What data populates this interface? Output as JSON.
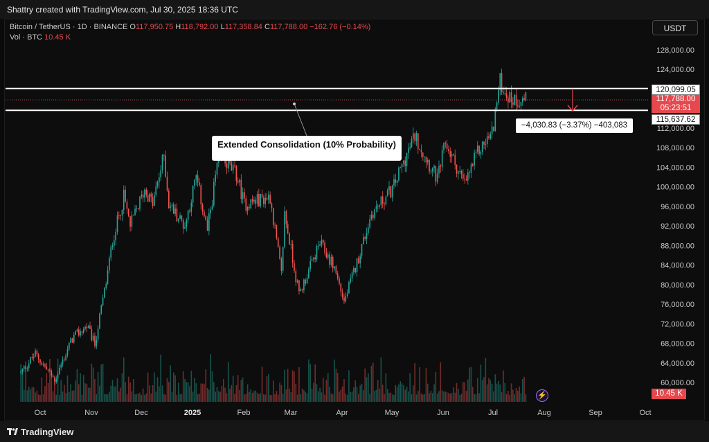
{
  "header": {
    "credit": "Shattry created with TradingView.com, Jul 30, 2025 18:36 UTC"
  },
  "footer": {
    "brand": "TradingView"
  },
  "legend": {
    "symbol": "Bitcoin / TetherUS · 1D · BINANCE",
    "o_label": "O",
    "o": "117,950.75",
    "h_label": "H",
    "h": "118,792.00",
    "l_label": "L",
    "l": "117,358.84",
    "c_label": "C",
    "c": "117,788.00",
    "change": "−162.76 (−0.14%)",
    "vol_label": "Vol · BTC",
    "vol": "10.45 K"
  },
  "currency_button": "USDT",
  "annotation": "Extended Consolidation (10% Probability)",
  "measure_label": "−4,030.83 (−3.37%) −403,083",
  "price_labels": {
    "upper_line": "120,099.05",
    "last_price": "117,788.00",
    "countdown": "05:23:51",
    "lower_line": "115,637.62"
  },
  "volume_badge": "10.45 K",
  "colors": {
    "up": "#26a69a",
    "down": "#ef5350",
    "accent_red": "#e5484d",
    "background": "#0d0d0d"
  },
  "chart_data": {
    "type": "candlestick",
    "x_ticks": [
      "Oct",
      "Nov",
      "Dec",
      "2025",
      "Feb",
      "Mar",
      "Apr",
      "May",
      "Jun",
      "Jul",
      "Aug",
      "Sep",
      "Oct"
    ],
    "y_ticks": [
      "128,000.00",
      "124,000.00",
      "120,000.00",
      "116,000.00",
      "112,000.00",
      "108,000.00",
      "104,000.00",
      "100,000.00",
      "96,000.00",
      "92,000.00",
      "88,000.00",
      "84,000.00",
      "80,000.00",
      "76,000.00",
      "72,000.00",
      "68,000.00",
      "64,000.00",
      "60,000.00"
    ],
    "y_range": [
      58000,
      130000
    ],
    "horizontal_lines": [
      120099.05,
      115637.62
    ],
    "last_price": 117788.0,
    "price_path": [
      [
        "2024-09-19",
        62000
      ],
      [
        "2024-09-28",
        65800
      ],
      [
        "2024-10-10",
        60500
      ],
      [
        "2024-10-21",
        69000
      ],
      [
        "2024-10-30",
        71500
      ],
      [
        "2024-11-04",
        67800
      ],
      [
        "2024-11-11",
        80500
      ],
      [
        "2024-11-15",
        89000
      ],
      [
        "2024-11-22",
        98000
      ],
      [
        "2024-11-26",
        92000
      ],
      [
        "2024-12-05",
        99500
      ],
      [
        "2024-12-10",
        96500
      ],
      [
        "2024-12-17",
        106500
      ],
      [
        "2024-12-20",
        96500
      ],
      [
        "2024-12-30",
        92000
      ],
      [
        "2025-01-06",
        102000
      ],
      [
        "2025-01-13",
        91000
      ],
      [
        "2025-01-20",
        106500
      ],
      [
        "2025-01-31",
        102500
      ],
      [
        "2025-02-05",
        96500
      ],
      [
        "2025-02-21",
        98000
      ],
      [
        "2025-02-28",
        82000
      ],
      [
        "2025-03-02",
        94500
      ],
      [
        "2025-03-11",
        78000
      ],
      [
        "2025-03-24",
        88500
      ],
      [
        "2025-04-02",
        83500
      ],
      [
        "2025-04-08",
        76500
      ],
      [
        "2025-04-16",
        84500
      ],
      [
        "2025-04-25",
        94500
      ],
      [
        "2025-05-08",
        99500
      ],
      [
        "2025-05-22",
        110500
      ],
      [
        "2025-06-05",
        101500
      ],
      [
        "2025-06-10",
        109000
      ],
      [
        "2025-06-22",
        100500
      ],
      [
        "2025-06-30",
        107000
      ],
      [
        "2025-07-09",
        111000
      ],
      [
        "2025-07-14",
        121500
      ],
      [
        "2025-07-20",
        118000
      ],
      [
        "2025-07-30",
        117788
      ]
    ]
  }
}
